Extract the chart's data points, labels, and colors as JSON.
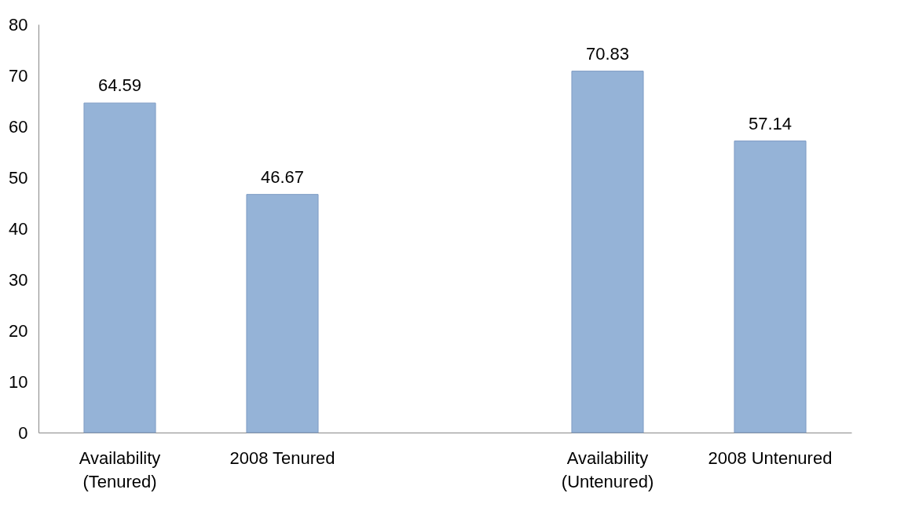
{
  "chart_data": {
    "type": "bar",
    "categories": [
      "Availability (Tenured)",
      "2008 Tenured",
      null,
      "Availability (Untenured)",
      "2008 Untenured"
    ],
    "values": [
      64.59,
      46.67,
      null,
      70.83,
      57.14
    ],
    "color": "#95b3d7",
    "ylim": [
      0,
      80
    ],
    "yticks": [
      0,
      10,
      20,
      30,
      40,
      50,
      60,
      70,
      80
    ],
    "grid": false,
    "data_labels": true
  }
}
